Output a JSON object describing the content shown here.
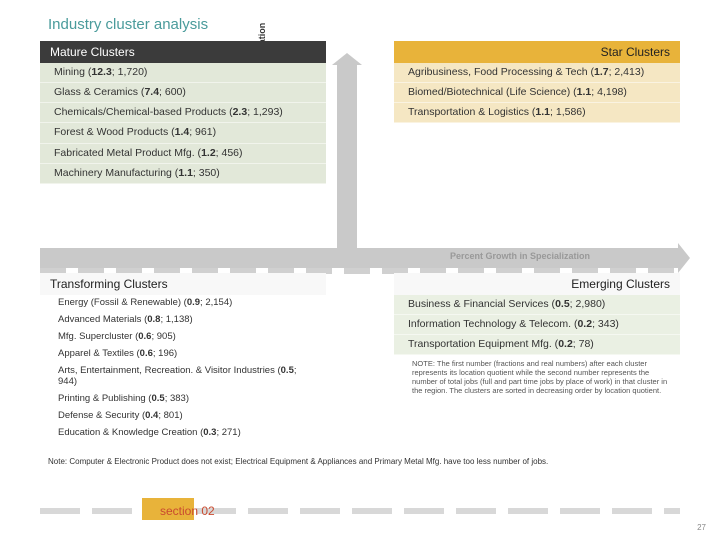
{
  "title": "Industry cluster analysis",
  "axis_v_label": "Level of Specialization",
  "axis_h_label": "Percent Growth in Specialization",
  "colors": {
    "title": "#4a9b9b",
    "mature_header_bg": "#3b3b3b",
    "star_header_bg": "#e8b33a",
    "mature_item_bg": "#e2e8d9",
    "star_item_bg": "#f5e7c3",
    "emerging_item_bg": "#eaf0e3",
    "axis": "#c9c9c9",
    "accent_orange": "#e8b33a",
    "section_text": "#c94a2f"
  },
  "quads": {
    "mature": {
      "header": "Mature Clusters",
      "items": [
        {
          "name": "Mining",
          "lq": "12.3",
          "jobs": "1,720"
        },
        {
          "name": "Glass & Ceramics",
          "lq": "7.4",
          "jobs": "600"
        },
        {
          "name": "Chemicals/Chemical-based Products",
          "lq": "2.3",
          "jobs": "1,293"
        },
        {
          "name": "Forest & Wood Products",
          "lq": "1.4",
          "jobs": "961"
        },
        {
          "name": "Fabricated Metal Product Mfg.",
          "lq": "1.2",
          "jobs": "456"
        },
        {
          "name": "Machinery Manufacturing",
          "lq": "1.1",
          "jobs": "350"
        }
      ]
    },
    "star": {
      "header": "Star Clusters",
      "items": [
        {
          "name": "Agribusiness, Food Processing & Tech",
          "lq": "1.7",
          "jobs": "2,413"
        },
        {
          "name": "Biomed/Biotechnical (Life Science)",
          "lq": "1.1",
          "jobs": "4,198"
        },
        {
          "name": "Transportation & Logistics",
          "lq": "1.1",
          "jobs": "1,586"
        }
      ]
    },
    "transforming": {
      "header": "Transforming Clusters",
      "items": [
        {
          "name": "Energy (Fossil & Renewable)",
          "lq": "0.9",
          "jobs": "2,154"
        },
        {
          "name": "Advanced Materials",
          "lq": "0.8",
          "jobs": "1,138"
        },
        {
          "name": "Mfg. Supercluster",
          "lq": "0.6",
          "jobs": "905"
        },
        {
          "name": "Apparel & Textiles",
          "lq": "0.6",
          "jobs": "196"
        },
        {
          "name": "Arts, Entertainment, Recreation. & Visitor Industries",
          "lq": "0.5",
          "jobs": "944"
        },
        {
          "name": "Printing & Publishing",
          "lq": "0.5",
          "jobs": "383"
        },
        {
          "name": "Defense & Security",
          "lq": "0.4",
          "jobs": "801"
        },
        {
          "name": "Education & Knowledge Creation",
          "lq": "0.3",
          "jobs": "271"
        }
      ]
    },
    "emerging": {
      "header": "Emerging Clusters",
      "items": [
        {
          "name": "Business & Financial Services",
          "lq": "0.5",
          "jobs": "2,980"
        },
        {
          "name": "Information Technology & Telecom.",
          "lq": "0.2",
          "jobs": "343"
        },
        {
          "name": "Transportation Equipment Mfg.",
          "lq": "0.2",
          "jobs": "78"
        }
      ],
      "note": "NOTE: The first number (fractions and real numbers) after each cluster represents its location quotient while the second number represents the number of total jobs (full and part time jobs by place of work) in that cluster in the region. The clusters are sorted in decreasing order by location quotient."
    }
  },
  "footer_note": "Note: Computer & Electronic Product does not exist; Electrical Equipment & Appliances and Primary Metal Mfg. have too less number of jobs.",
  "section_label": "section 02",
  "page_number": "27"
}
